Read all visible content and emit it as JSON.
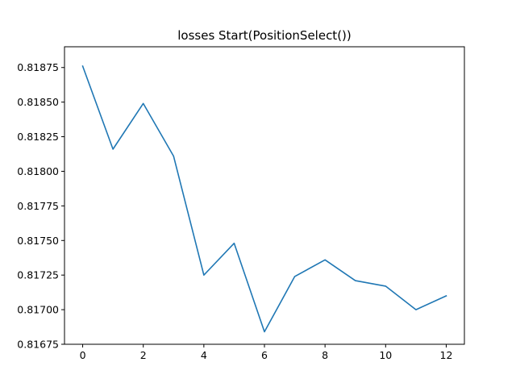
{
  "chart_data": {
    "type": "line",
    "title": "losses Start(PositionSelect())",
    "xlabel": "",
    "ylabel": "",
    "xlim": [
      -0.6,
      12.6
    ],
    "ylim": [
      0.81675,
      0.8189
    ],
    "x_ticks": [
      0,
      2,
      4,
      6,
      8,
      10,
      12
    ],
    "x_tick_labels": [
      "0",
      "2",
      "4",
      "6",
      "8",
      "10",
      "12"
    ],
    "y_ticks": [
      0.81675,
      0.817,
      0.81725,
      0.8175,
      0.81775,
      0.818,
      0.81825,
      0.8185,
      0.81875
    ],
    "y_tick_labels": [
      "0.81675",
      "0.81700",
      "0.81725",
      "0.81750",
      "0.81775",
      "0.81800",
      "0.81825",
      "0.81850",
      "0.81875"
    ],
    "grid": false,
    "series": [
      {
        "color": "#1f77b4",
        "x": [
          0,
          1,
          2,
          3,
          4,
          5,
          6,
          7,
          8,
          9,
          10,
          11,
          12
        ],
        "y": [
          0.81876,
          0.81816,
          0.81849,
          0.81811,
          0.81725,
          0.81748,
          0.81684,
          0.81724,
          0.81736,
          0.81721,
          0.81717,
          0.817,
          0.8171
        ]
      }
    ]
  }
}
